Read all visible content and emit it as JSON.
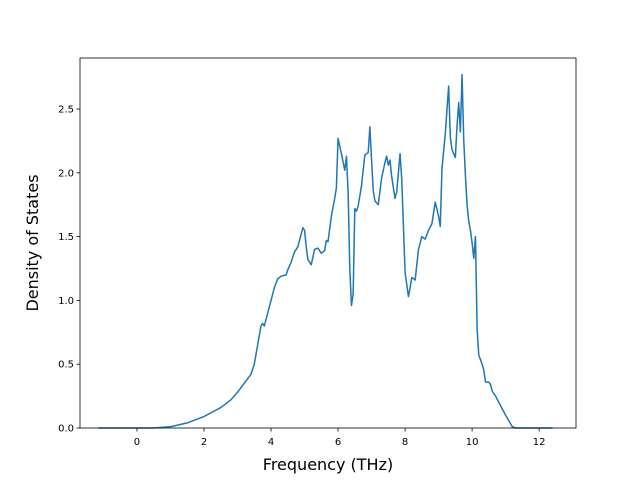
{
  "chart_data": {
    "type": "line",
    "title": "",
    "xlabel": "Frequency (THz)",
    "ylabel": "Density of States",
    "xlim": [
      -1.7,
      13.1
    ],
    "ylim": [
      0,
      2.9
    ],
    "xticks": [
      0,
      2,
      4,
      6,
      8,
      10,
      12
    ],
    "xtick_labels": [
      "0",
      "2",
      "4",
      "6",
      "8",
      "10",
      "12"
    ],
    "yticks": [
      0,
      0.5,
      1.0,
      1.5,
      2.0,
      2.5
    ],
    "ytick_labels": [
      "0.0",
      "0.5",
      "1.0",
      "1.5",
      "2.0",
      "2.5"
    ],
    "grid": false,
    "line_color": "#1f77b4",
    "series": [
      {
        "x": [
          -1.15,
          0.0,
          0.5,
          1.0,
          1.5,
          2.0,
          2.5,
          2.8,
          3.0,
          3.2,
          3.4,
          3.5,
          3.6,
          3.7,
          3.75,
          3.8,
          3.85,
          4.0,
          4.1,
          4.2,
          4.3,
          4.45,
          4.5,
          4.6,
          4.7,
          4.8,
          4.85,
          4.9,
          4.95,
          5.0,
          5.05,
          5.1,
          5.2,
          5.3,
          5.4,
          5.5,
          5.55,
          5.6,
          5.65,
          5.7,
          5.8,
          5.9,
          5.95,
          6.0,
          6.1,
          6.2,
          6.25,
          6.3,
          6.35,
          6.4,
          6.45,
          6.5,
          6.55,
          6.6,
          6.7,
          6.8,
          6.9,
          6.95,
          7.0,
          7.05,
          7.1,
          7.2,
          7.3,
          7.4,
          7.45,
          7.5,
          7.55,
          7.6,
          7.7,
          7.75,
          7.8,
          7.85,
          7.9,
          8.0,
          8.1,
          8.15,
          8.2,
          8.3,
          8.4,
          8.5,
          8.6,
          8.7,
          8.8,
          8.9,
          9.0,
          9.05,
          9.1,
          9.2,
          9.3,
          9.35,
          9.4,
          9.5,
          9.55,
          9.6,
          9.65,
          9.7,
          9.75,
          9.8,
          9.85,
          9.9,
          9.95,
          10.0,
          10.05,
          10.1,
          10.15,
          10.2,
          10.3,
          10.35,
          10.4,
          10.5,
          10.55,
          10.6,
          10.7,
          10.8,
          11.0,
          11.2,
          11.3,
          11.5,
          12.0,
          12.4
        ],
        "y": [
          0.0,
          0.0,
          0.0,
          0.01,
          0.04,
          0.09,
          0.16,
          0.22,
          0.28,
          0.35,
          0.42,
          0.5,
          0.65,
          0.8,
          0.82,
          0.8,
          0.85,
          1.0,
          1.1,
          1.17,
          1.19,
          1.2,
          1.24,
          1.3,
          1.38,
          1.42,
          1.47,
          1.52,
          1.57,
          1.55,
          1.42,
          1.32,
          1.28,
          1.4,
          1.41,
          1.37,
          1.38,
          1.39,
          1.47,
          1.46,
          1.66,
          1.8,
          1.88,
          2.27,
          2.15,
          2.02,
          2.13,
          1.85,
          1.25,
          0.96,
          1.05,
          1.72,
          1.7,
          1.74,
          1.9,
          2.14,
          2.16,
          2.36,
          2.1,
          1.86,
          1.78,
          1.75,
          1.96,
          2.08,
          2.13,
          2.06,
          2.1,
          1.97,
          1.8,
          1.85,
          2.0,
          2.15,
          1.95,
          1.22,
          1.03,
          1.1,
          1.18,
          1.16,
          1.4,
          1.5,
          1.48,
          1.55,
          1.6,
          1.77,
          1.66,
          1.58,
          2.03,
          2.31,
          2.68,
          2.28,
          2.18,
          2.12,
          2.37,
          2.55,
          2.32,
          2.77,
          2.26,
          1.98,
          1.75,
          1.62,
          1.55,
          1.45,
          1.33,
          1.5,
          0.77,
          0.57,
          0.5,
          0.45,
          0.36,
          0.36,
          0.34,
          0.29,
          0.25,
          0.2,
          0.1,
          0.01,
          0.0,
          0.0,
          0.0,
          0.0
        ]
      }
    ]
  }
}
